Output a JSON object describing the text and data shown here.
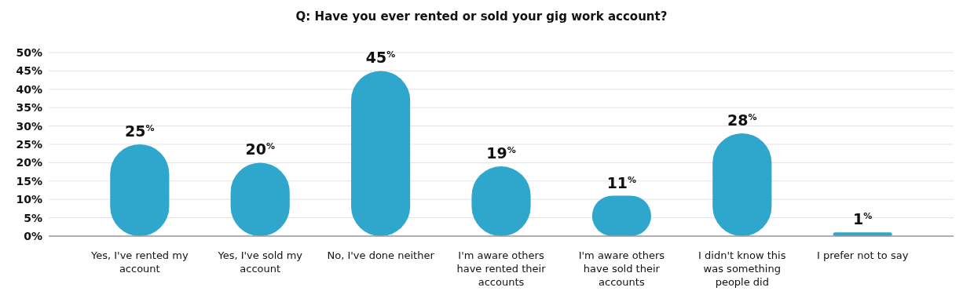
{
  "chart_data": {
    "type": "bar",
    "title": "Q: Have you ever rented or sold your gig work account?",
    "categories": [
      "Yes, I've rented my account",
      "Yes, I've sold my account",
      "No, I've done neither",
      "I'm aware others have rented their accounts",
      "I'm aware others have sold their accounts",
      "I didn't know this was something people did",
      "I prefer not to say"
    ],
    "values": [
      25,
      20,
      45,
      19,
      11,
      28,
      1
    ],
    "value_labels": [
      "25$^{%}$",
      "20$^{%}$",
      "45$^{%}$",
      "19$^{%}$",
      "11$^{%}$",
      "28$^{%}$",
      "1$^{%}$"
    ],
    "color": "#2fa6cc",
    "ylim": [
      0,
      50
    ],
    "yticks": [
      {
        "value": 0,
        "label": "0%"
      },
      {
        "value": 5,
        "label": "5%"
      },
      {
        "value": 10,
        "label": "10%"
      },
      {
        "value": 15,
        "label": "15%"
      },
      {
        "value": 20,
        "label": "20%"
      },
      {
        "value": 25,
        "label": "25%"
      },
      {
        "value": 30,
        "label": "30%"
      },
      {
        "value": 35,
        "label": "35%"
      },
      {
        "value": 40,
        "label": "40%"
      },
      {
        "value": 45,
        "label": "45%"
      },
      {
        "value": 50,
        "label": "50%"
      }
    ],
    "grid": "y"
  }
}
